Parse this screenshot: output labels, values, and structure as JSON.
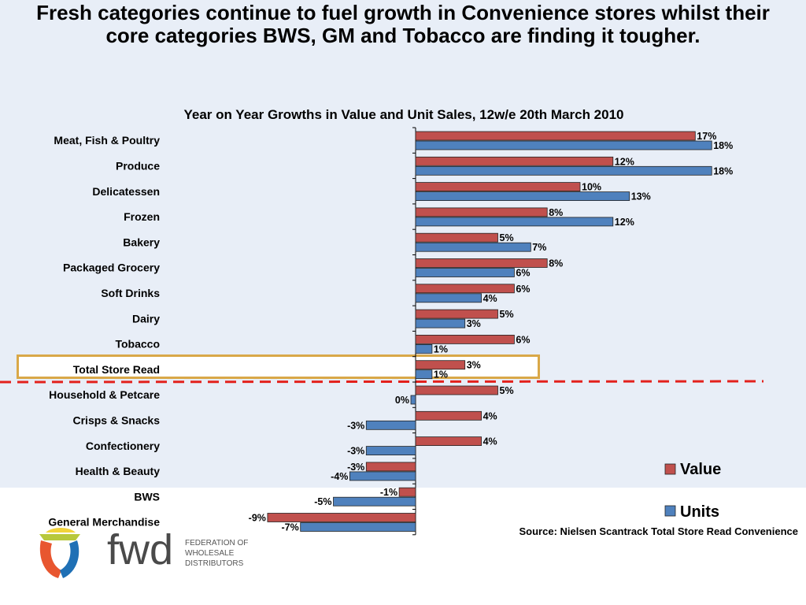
{
  "headline": {
    "line1": "Fresh categories continue to fuel growth in Convenience stores whilst their",
    "line2": "core categories BWS, GM and Tobacco are finding it tougher."
  },
  "source_note": "Source:  Nielsen Scantrack Total Store Read Convenience",
  "logo": {
    "wordmark": "fwd",
    "tagline": [
      "FEDERATION OF",
      "WHOLESALE",
      "DISTRIBUTORS"
    ]
  },
  "colors": {
    "value_bar": "#c0504d",
    "units_bar": "#4f81bd",
    "highlight_box": "#d9a848",
    "dashed_line": "#e3211c",
    "background": "#e8eef7"
  },
  "chart_data": {
    "type": "bar",
    "orientation": "horizontal",
    "title": "Year on Year Growths in Value and Unit Sales, 12w/e 20th March 2010",
    "categories": [
      "Meat, Fish & Poultry",
      "Produce",
      "Delicatessen",
      "Frozen",
      "Bakery",
      "Packaged Grocery",
      "Soft Drinks",
      "Dairy",
      "Tobacco",
      "Total Store Read",
      "Household & Petcare",
      "Crisps & Snacks",
      "Confectionery",
      "Health & Beauty",
      "BWS",
      "General Merchandise"
    ],
    "series": [
      {
        "name": "Value",
        "color": "#c0504d",
        "values": [
          17,
          12,
          10,
          8,
          5,
          8,
          6,
          5,
          6,
          3,
          5,
          4,
          4,
          -3,
          -1,
          -9
        ]
      },
      {
        "name": "Units",
        "color": "#4f81bd",
        "values": [
          18,
          18,
          13,
          12,
          7,
          6,
          4,
          3,
          1,
          1,
          0,
          -3,
          -3,
          -4,
          -5,
          -7
        ]
      }
    ],
    "value_labels": {
      "Value": [
        "17%",
        "12%",
        "10%",
        "8%",
        "5%",
        "8%",
        "6%",
        "5%",
        "6%",
        "3%",
        "5%",
        "4%",
        "4%",
        "-3%",
        "-1%",
        "-9%"
      ],
      "Units": [
        "18%",
        "18%",
        "13%",
        "12%",
        "7%",
        "6%",
        "4%",
        "3%",
        "1%",
        "1%",
        "0%",
        "-3%",
        "-3%",
        "-4%",
        "-5%",
        "-7%"
      ]
    },
    "unit": "%",
    "xlim": [
      -9,
      18
    ],
    "highlighted_category": "Total Store Read",
    "legend_placement": "bottom-right",
    "grid": false
  }
}
